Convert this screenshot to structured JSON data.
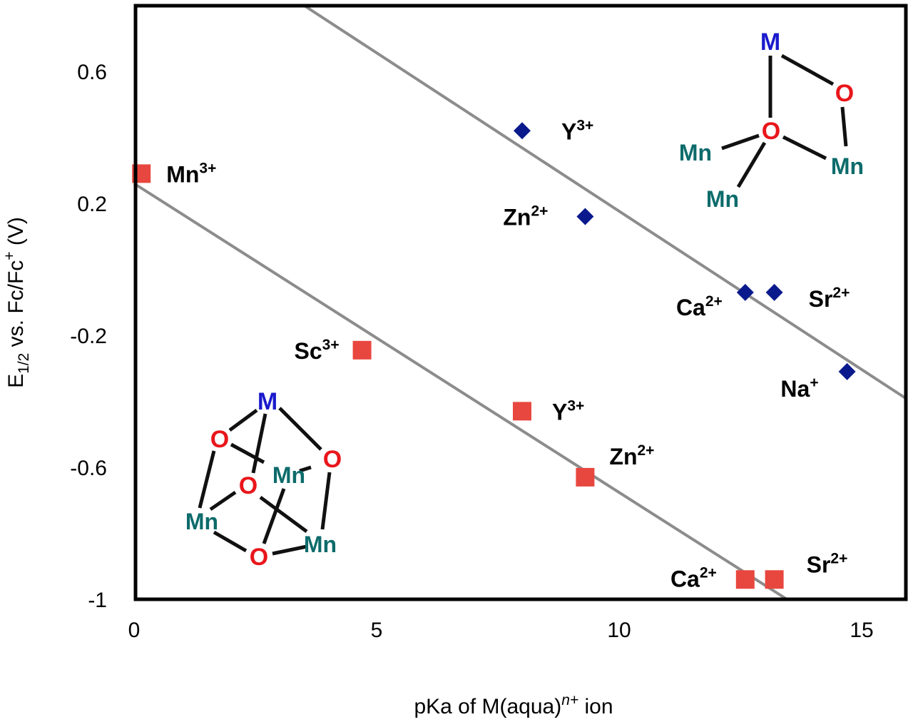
{
  "chart_data": {
    "type": "scatter",
    "xlabel": "pKa of M(aqua)n+ ion",
    "xlabel_parts": {
      "pre": "pKa of M(aqua)",
      "sup": "n+",
      "post": " ion"
    },
    "ylabel_parts": {
      "E": "E",
      "sub": "1/2",
      "mid": " vs. Fc/Fc",
      "sup": "+",
      "post": " (V)"
    },
    "ylabel": "E1/2 vs. Fc/Fc+ (V)",
    "xlim": [
      0,
      16
    ],
    "ylim": [
      -1,
      0.8
    ],
    "xticks": [
      0,
      5,
      10,
      15
    ],
    "yticks": [
      0.6,
      0.2,
      -0.2,
      -0.6,
      -1
    ],
    "xtick_labels": [
      "0",
      "5",
      "10",
      "15"
    ],
    "ytick_labels": [
      "0.6",
      "0.2",
      "-0.2",
      "-0.6",
      "-1"
    ],
    "grid": false,
    "series": [
      {
        "name": "M-O-Mn3 (diamonds)",
        "marker": "diamond",
        "color": "#0a1a8c",
        "points": [
          {
            "x": 8.0,
            "y": 0.42,
            "label": "Y",
            "charge": "3+"
          },
          {
            "x": 9.3,
            "y": 0.16,
            "label": "Zn",
            "charge": "2+"
          },
          {
            "x": 12.6,
            "y": -0.07,
            "label": "Ca",
            "charge": "2+"
          },
          {
            "x": 13.2,
            "y": -0.07,
            "label": "Sr",
            "charge": "2+"
          },
          {
            "x": 14.7,
            "y": -0.31,
            "label": "Na",
            "charge": "+"
          }
        ],
        "fit": {
          "x": [
            3.5,
            15.9
          ],
          "y": [
            0.8,
            -0.39
          ]
        }
      },
      {
        "name": "MMn3O4 cubane (squares)",
        "marker": "square",
        "color": "#e8473f",
        "points": [
          {
            "x": 0.15,
            "y": 0.29,
            "label": "Mn",
            "charge": "3+"
          },
          {
            "x": 4.7,
            "y": -0.245,
            "label": "Sc",
            "charge": "3+"
          },
          {
            "x": 8.0,
            "y": -0.43,
            "label": "Y",
            "charge": "3+"
          },
          {
            "x": 9.3,
            "y": -0.63,
            "label": "Zn",
            "charge": "2+"
          },
          {
            "x": 12.6,
            "y": -0.94,
            "label": "Ca",
            "charge": "2+"
          },
          {
            "x": 13.2,
            "y": -0.94,
            "label": "Sr",
            "charge": "2+"
          }
        ],
        "fit": {
          "x": [
            0,
            13.46
          ],
          "y": [
            0.26,
            -1.0
          ]
        }
      }
    ],
    "fit_line_color": "#8c8c8c",
    "insets": {
      "atoms": {
        "M": "M",
        "O": "O",
        "Mn": "Mn"
      }
    }
  }
}
